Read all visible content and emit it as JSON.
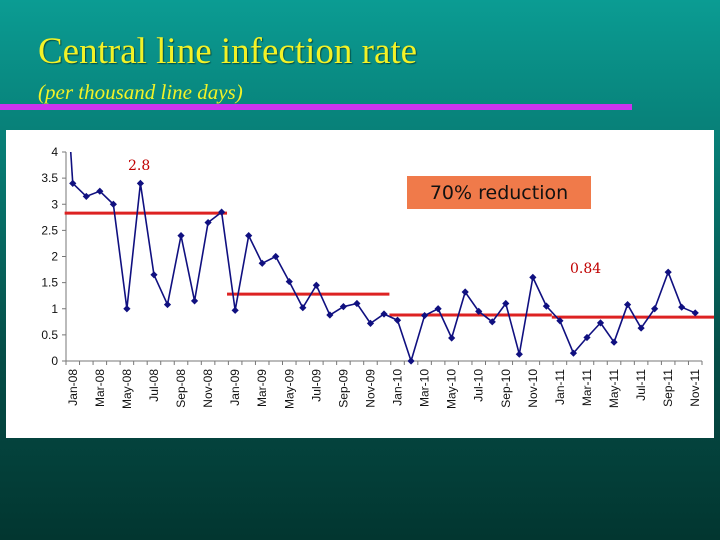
{
  "slide": {
    "title": "Central line infection rate",
    "subtitle": "(per thousand line days)"
  },
  "colors": {
    "background": "#0a8f87",
    "title": "#f2f227",
    "rule": "#cc33ee",
    "series": "#101080",
    "median": "#dd2222",
    "callout": "#f07a4a"
  },
  "chart_data": {
    "type": "line",
    "title": "",
    "xlabel": "",
    "ylabel": "",
    "ylim": [
      0,
      4
    ],
    "yticks": [
      0,
      0.5,
      1,
      1.5,
      2,
      2.5,
      3,
      3.5,
      4
    ],
    "ytick_labels": [
      "0",
      "0.5",
      "1",
      "1.5",
      "2",
      "2.5",
      "3",
      "3.5",
      "4"
    ],
    "xtick_labels": [
      "Jan-08",
      "Mar-08",
      "May-08",
      "Jul-08",
      "Sep-08",
      "Nov-08",
      "Jan-09",
      "Mar-09",
      "May-09",
      "Jul-09",
      "Sep-09",
      "Nov-09",
      "Jan-10",
      "Mar-10",
      "May-10",
      "Jul-10",
      "Sep-10",
      "Nov-10",
      "Jan-11",
      "Mar-11",
      "May-11",
      "Jul-11",
      "Sep-11",
      "Nov-11"
    ],
    "grid": false,
    "legend": "none",
    "series": [
      {
        "values": [
          3.4,
          3.15,
          3.25,
          3.0,
          1.0,
          3.4,
          1.65,
          1.08,
          2.4,
          1.15,
          2.65,
          2.85,
          0.97,
          2.4,
          1.87,
          2.0,
          1.52,
          1.02,
          1.45,
          0.88,
          1.04,
          1.1,
          0.72,
          0.9,
          0.78,
          0.0,
          0.87,
          1.0,
          0.44,
          1.32,
          0.95,
          0.75,
          1.1,
          0.13,
          1.6,
          1.05,
          0.77,
          0.15,
          0.45,
          0.73,
          0.36,
          1.08,
          0.63,
          1.0,
          1.7,
          1.03,
          0.92
        ],
        "lead_in_from": 4.0
      }
    ],
    "median_lines": [
      {
        "x_start": 0,
        "x_end": 11,
        "y": 2.83
      },
      {
        "x_start": 12,
        "x_end": 23,
        "y": 1.28
      },
      {
        "x_start": 24,
        "x_end": 35,
        "y": 0.88
      },
      {
        "x_start": 36,
        "x_end": 47,
        "y": 0.84
      }
    ],
    "annotations": {
      "label_high": "2.8",
      "label_low": "0.84",
      "callout": "70% reduction"
    }
  }
}
